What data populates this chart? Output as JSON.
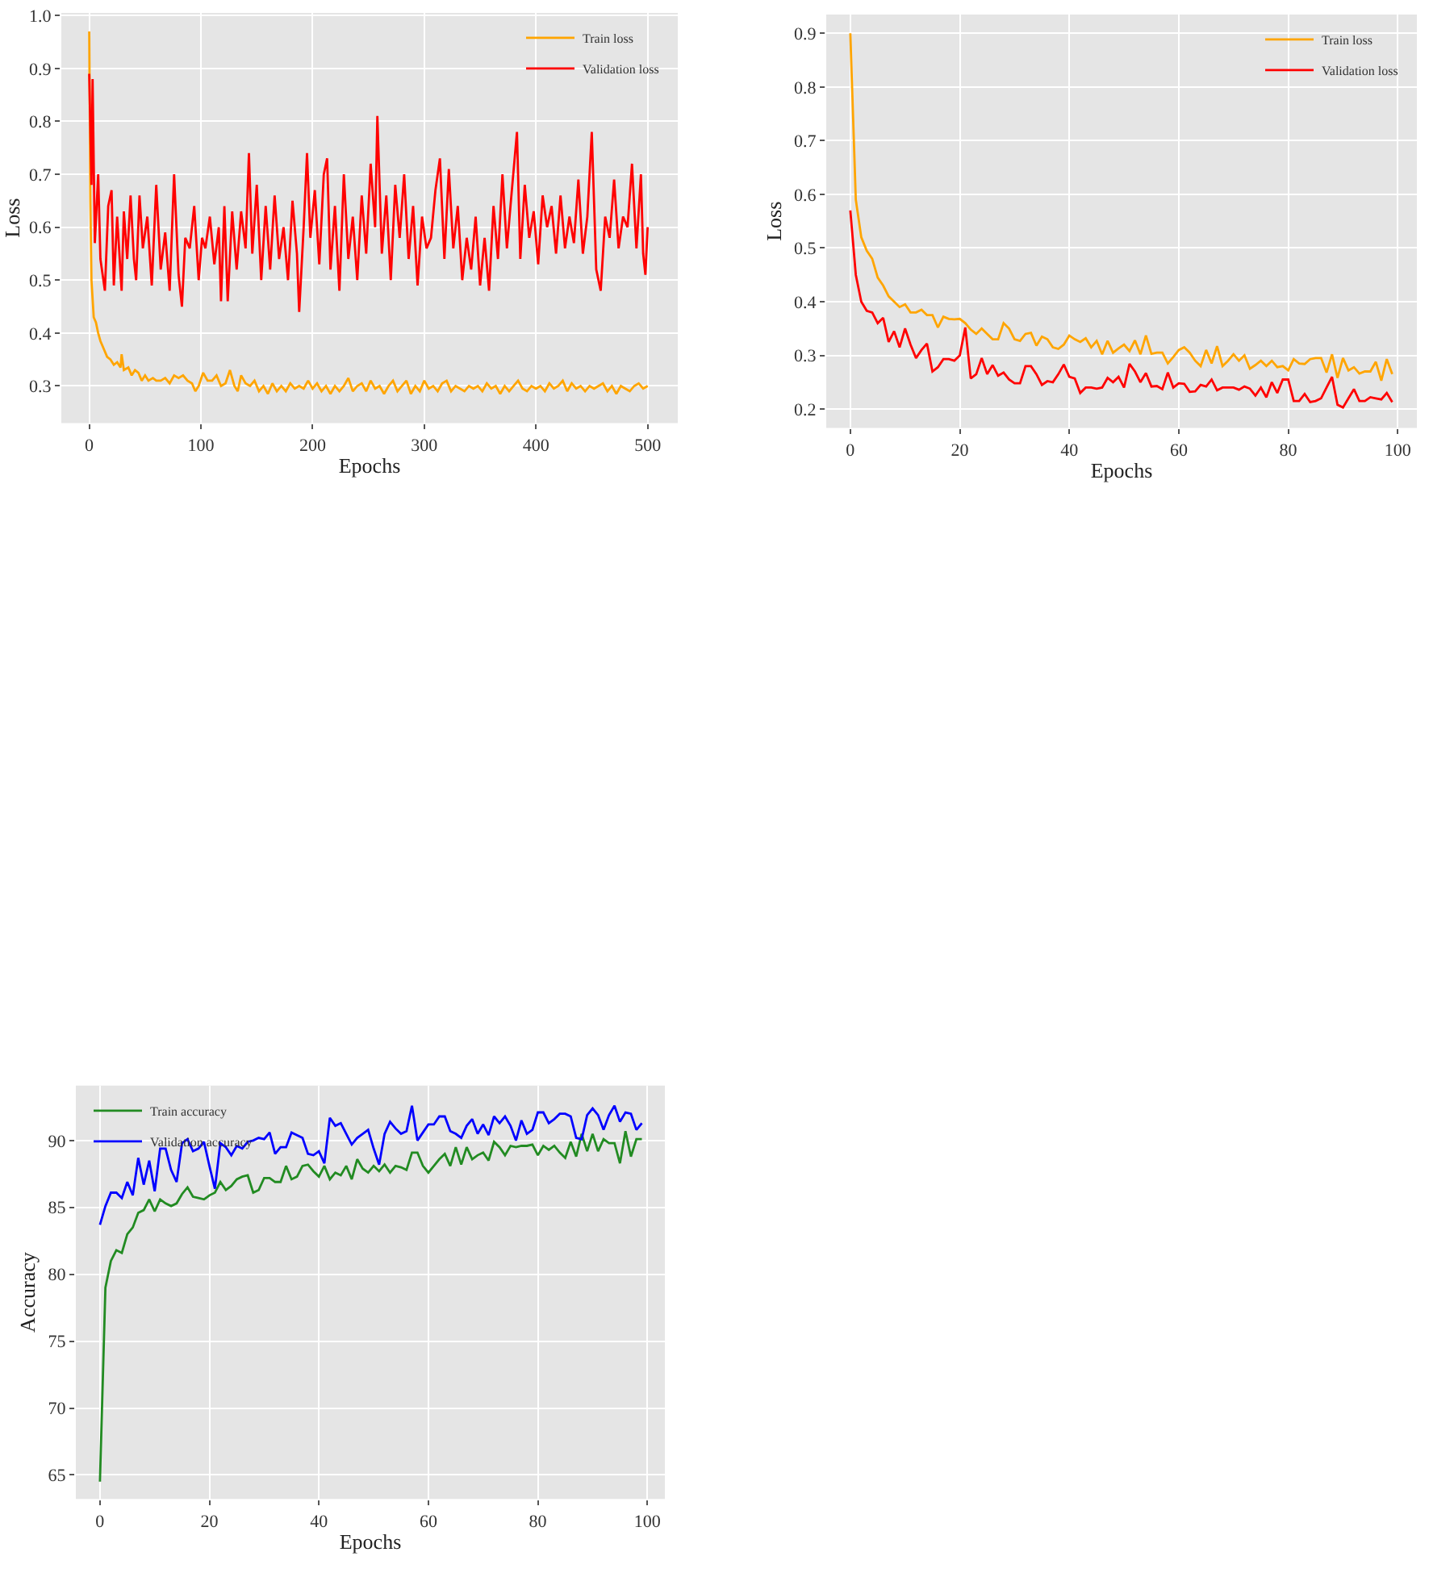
{
  "chart_data": [
    {
      "type": "line",
      "xlabel": "Epochs",
      "ylabel": "Loss",
      "xlim": [
        -25,
        527
      ],
      "ylim": [
        0.23,
        1.005
      ],
      "xticks": [
        0,
        100,
        200,
        300,
        400,
        500
      ],
      "yticks": [
        0.3,
        0.4,
        0.5,
        0.6,
        0.7,
        0.8,
        0.9,
        {
          "value": 1.0,
          "label": "1.0"
        }
      ],
      "grid": true,
      "legend": "top right",
      "marker": "none",
      "line_style": "solid",
      "series": [
        {
          "name": "Train loss",
          "color": "#ffa500",
          "x": [
            0,
            1,
            2,
            4,
            6,
            8,
            10,
            13,
            16,
            19,
            22,
            25,
            28,
            29,
            31,
            35,
            38,
            41,
            44,
            47,
            50,
            53,
            57,
            60,
            64,
            68,
            72,
            76,
            80,
            84,
            88,
            92,
            95,
            98,
            102,
            106,
            110,
            114,
            118,
            122,
            126,
            130,
            133,
            136,
            140,
            144,
            148,
            152,
            156,
            160,
            164,
            168,
            172,
            176,
            180,
            184,
            188,
            192,
            196,
            200,
            204,
            208,
            212,
            216,
            220,
            224,
            228,
            232,
            236,
            240,
            244,
            248,
            252,
            256,
            260,
            264,
            268,
            272,
            276,
            280,
            284,
            288,
            292,
            296,
            300,
            304,
            308,
            312,
            316,
            320,
            324,
            328,
            332,
            336,
            340,
            344,
            348,
            352,
            356,
            360,
            364,
            368,
            372,
            376,
            380,
            384,
            388,
            392,
            396,
            400,
            404,
            408,
            412,
            416,
            420,
            424,
            428,
            432,
            436,
            440,
            444,
            448,
            452,
            456,
            460,
            464,
            468,
            472,
            476,
            480,
            484,
            488,
            492,
            496,
            500
          ],
          "values": [
            0.97,
            0.65,
            0.5,
            0.43,
            0.42,
            0.4,
            0.385,
            0.37,
            0.355,
            0.35,
            0.34,
            0.345,
            0.335,
            0.36,
            0.33,
            0.335,
            0.32,
            0.33,
            0.325,
            0.31,
            0.32,
            0.31,
            0.315,
            0.31,
            0.31,
            0.315,
            0.305,
            0.32,
            0.315,
            0.32,
            0.31,
            0.305,
            0.29,
            0.3,
            0.325,
            0.31,
            0.31,
            0.32,
            0.3,
            0.305,
            0.33,
            0.3,
            0.29,
            0.32,
            0.305,
            0.3,
            0.31,
            0.29,
            0.3,
            0.285,
            0.305,
            0.29,
            0.3,
            0.29,
            0.305,
            0.295,
            0.3,
            0.295,
            0.31,
            0.295,
            0.305,
            0.29,
            0.3,
            0.285,
            0.3,
            0.29,
            0.3,
            0.315,
            0.29,
            0.3,
            0.305,
            0.29,
            0.31,
            0.295,
            0.3,
            0.285,
            0.3,
            0.31,
            0.29,
            0.3,
            0.31,
            0.285,
            0.3,
            0.29,
            0.31,
            0.295,
            0.3,
            0.29,
            0.305,
            0.31,
            0.29,
            0.3,
            0.295,
            0.29,
            0.3,
            0.295,
            0.3,
            0.29,
            0.305,
            0.295,
            0.3,
            0.285,
            0.3,
            0.29,
            0.3,
            0.31,
            0.295,
            0.29,
            0.3,
            0.295,
            0.3,
            0.29,
            0.305,
            0.295,
            0.3,
            0.31,
            0.29,
            0.305,
            0.295,
            0.3,
            0.29,
            0.3,
            0.295,
            0.3,
            0.305,
            0.29,
            0.3,
            0.285,
            0.3,
            0.295,
            0.29,
            0.3,
            0.305,
            0.295,
            0.3
          ]
        },
        {
          "name": "Validation loss",
          "color": "#ff0000",
          "x": [
            0,
            2,
            3,
            5,
            8,
            10,
            14,
            17,
            20,
            22,
            25,
            29,
            31,
            34,
            37,
            40,
            42,
            45,
            48,
            52,
            56,
            60,
            64,
            68,
            72,
            76,
            80,
            83,
            86,
            90,
            94,
            98,
            101,
            104,
            108,
            112,
            116,
            118,
            121,
            124,
            128,
            132,
            136,
            140,
            143,
            146,
            150,
            154,
            158,
            162,
            166,
            170,
            174,
            178,
            182,
            186,
            188,
            192,
            195,
            198,
            202,
            206,
            210,
            213,
            216,
            220,
            224,
            228,
            232,
            236,
            240,
            244,
            248,
            252,
            256,
            258,
            262,
            266,
            270,
            274,
            278,
            282,
            286,
            290,
            294,
            298,
            302,
            306,
            310,
            314,
            318,
            322,
            326,
            330,
            334,
            338,
            342,
            346,
            350,
            354,
            358,
            362,
            366,
            370,
            374,
            378,
            383,
            386,
            390,
            394,
            398,
            402,
            406,
            410,
            414,
            418,
            422,
            426,
            430,
            434,
            438,
            442,
            446,
            450,
            454,
            458,
            462,
            466,
            470,
            474,
            478,
            482,
            486,
            490,
            494,
            496,
            498,
            500
          ],
          "values": [
            0.89,
            0.68,
            0.88,
            0.57,
            0.7,
            0.54,
            0.48,
            0.64,
            0.67,
            0.49,
            0.62,
            0.48,
            0.63,
            0.54,
            0.66,
            0.54,
            0.5,
            0.66,
            0.56,
            0.62,
            0.49,
            0.68,
            0.52,
            0.59,
            0.48,
            0.7,
            0.51,
            0.45,
            0.58,
            0.56,
            0.64,
            0.5,
            0.58,
            0.56,
            0.62,
            0.53,
            0.6,
            0.46,
            0.64,
            0.46,
            0.63,
            0.52,
            0.63,
            0.56,
            0.74,
            0.55,
            0.68,
            0.5,
            0.64,
            0.52,
            0.66,
            0.54,
            0.6,
            0.5,
            0.65,
            0.55,
            0.44,
            0.6,
            0.74,
            0.58,
            0.67,
            0.53,
            0.7,
            0.73,
            0.52,
            0.64,
            0.48,
            0.7,
            0.54,
            0.62,
            0.5,
            0.66,
            0.55,
            0.72,
            0.6,
            0.81,
            0.55,
            0.66,
            0.5,
            0.68,
            0.58,
            0.7,
            0.54,
            0.64,
            0.49,
            0.62,
            0.56,
            0.58,
            0.67,
            0.73,
            0.54,
            0.71,
            0.56,
            0.64,
            0.5,
            0.58,
            0.52,
            0.62,
            0.49,
            0.58,
            0.48,
            0.64,
            0.54,
            0.7,
            0.56,
            0.66,
            0.78,
            0.54,
            0.68,
            0.58,
            0.63,
            0.53,
            0.66,
            0.6,
            0.64,
            0.55,
            0.66,
            0.56,
            0.62,
            0.57,
            0.69,
            0.55,
            0.62,
            0.78,
            0.52,
            0.48,
            0.62,
            0.58,
            0.69,
            0.56,
            0.62,
            0.6,
            0.72,
            0.56,
            0.7,
            0.55,
            0.51,
            0.6
          ]
        }
      ]
    },
    {
      "type": "line",
      "xlabel": "Epochs",
      "ylabel": "Loss",
      "xlim": [
        -4.4,
        103.5
      ],
      "ylim": [
        0.165,
        0.935
      ],
      "xticks": [
        0,
        20,
        40,
        60,
        80,
        100
      ],
      "yticks": [
        0.2,
        0.3,
        0.4,
        0.5,
        0.6,
        0.7,
        0.8,
        0.9
      ],
      "grid": true,
      "legend": "top right",
      "marker": "none",
      "line_style": "solid",
      "x": [
        0,
        1,
        2,
        3,
        4,
        5,
        6,
        7,
        8,
        9,
        10,
        11,
        12,
        13,
        14,
        15,
        16,
        17,
        18,
        19,
        20,
        21,
        22,
        23,
        24,
        25,
        26,
        27,
        28,
        29,
        30,
        31,
        32,
        33,
        34,
        35,
        36,
        37,
        38,
        39,
        40,
        41,
        42,
        43,
        44,
        45,
        46,
        47,
        48,
        49,
        50,
        51,
        52,
        53,
        54,
        55,
        56,
        57,
        58,
        59,
        60,
        61,
        62,
        63,
        64,
        65,
        66,
        67,
        68,
        69,
        70,
        71,
        72,
        73,
        74,
        75,
        76,
        77,
        78,
        79,
        80,
        81,
        82,
        83,
        84,
        85,
        86,
        87,
        88,
        89,
        90,
        91,
        92,
        93,
        94,
        95,
        96,
        97,
        98,
        99
      ],
      "series": [
        {
          "name": "Train loss",
          "color": "#ffa500",
          "values": [
            0.9,
            0.59,
            0.52,
            0.495,
            0.48,
            0.445,
            0.43,
            0.41,
            0.4,
            0.39,
            0.395,
            0.38,
            0.38,
            0.385,
            0.375,
            0.375,
            0.352,
            0.372,
            0.368,
            0.367,
            0.368,
            0.36,
            0.348,
            0.34,
            0.35,
            0.34,
            0.33,
            0.33,
            0.36,
            0.35,
            0.33,
            0.327,
            0.34,
            0.342,
            0.318,
            0.335,
            0.33,
            0.315,
            0.312,
            0.32,
            0.337,
            0.33,
            0.325,
            0.332,
            0.315,
            0.327,
            0.302,
            0.327,
            0.305,
            0.313,
            0.32,
            0.308,
            0.328,
            0.302,
            0.337,
            0.303,
            0.305,
            0.305,
            0.285,
            0.297,
            0.31,
            0.315,
            0.305,
            0.29,
            0.28,
            0.31,
            0.285,
            0.317,
            0.28,
            0.29,
            0.302,
            0.29,
            0.3,
            0.275,
            0.282,
            0.29,
            0.28,
            0.29,
            0.278,
            0.28,
            0.272,
            0.293,
            0.285,
            0.284,
            0.293,
            0.295,
            0.295,
            0.268,
            0.302,
            0.258,
            0.295,
            0.272,
            0.278,
            0.266,
            0.27,
            0.27,
            0.288,
            0.253,
            0.293,
            0.265
          ]
        },
        {
          "name": "Validation loss",
          "color": "#ff0000",
          "values": [
            0.57,
            0.45,
            0.4,
            0.383,
            0.38,
            0.36,
            0.37,
            0.325,
            0.345,
            0.315,
            0.35,
            0.32,
            0.295,
            0.31,
            0.322,
            0.27,
            0.278,
            0.293,
            0.293,
            0.29,
            0.3,
            0.352,
            0.257,
            0.265,
            0.295,
            0.265,
            0.282,
            0.262,
            0.268,
            0.255,
            0.248,
            0.248,
            0.28,
            0.28,
            0.265,
            0.245,
            0.252,
            0.25,
            0.265,
            0.283,
            0.26,
            0.257,
            0.23,
            0.24,
            0.24,
            0.238,
            0.24,
            0.258,
            0.25,
            0.26,
            0.24,
            0.284,
            0.27,
            0.25,
            0.267,
            0.242,
            0.243,
            0.237,
            0.268,
            0.24,
            0.248,
            0.247,
            0.232,
            0.233,
            0.245,
            0.242,
            0.255,
            0.235,
            0.24,
            0.24,
            0.24,
            0.236,
            0.242,
            0.238,
            0.225,
            0.24,
            0.222,
            0.25,
            0.23,
            0.255,
            0.255,
            0.215,
            0.215,
            0.228,
            0.213,
            0.215,
            0.22,
            0.24,
            0.26,
            0.208,
            0.203,
            0.22,
            0.237,
            0.215,
            0.215,
            0.222,
            0.22,
            0.218,
            0.23,
            0.213
          ]
        }
      ]
    },
    {
      "type": "line",
      "xlabel": "Epochs",
      "ylabel": "Accuracy",
      "xlim": [
        -4.4,
        103.2
      ],
      "ylim": [
        63.2,
        94.1
      ],
      "xticks": [
        0,
        20,
        40,
        60,
        80,
        100
      ],
      "yticks": [
        65,
        70,
        75,
        80,
        85,
        90
      ],
      "grid": true,
      "legend": "top left",
      "marker": "none",
      "line_style": "solid",
      "x": [
        0,
        1,
        2,
        3,
        4,
        5,
        6,
        7,
        8,
        9,
        10,
        11,
        12,
        13,
        14,
        15,
        16,
        17,
        18,
        19,
        20,
        21,
        22,
        23,
        24,
        25,
        26,
        27,
        28,
        29,
        30,
        31,
        32,
        33,
        34,
        35,
        36,
        37,
        38,
        39,
        40,
        41,
        42,
        43,
        44,
        45,
        46,
        47,
        48,
        49,
        50,
        51,
        52,
        53,
        54,
        55,
        56,
        57,
        58,
        59,
        60,
        61,
        62,
        63,
        64,
        65,
        66,
        67,
        68,
        69,
        70,
        71,
        72,
        73,
        74,
        75,
        76,
        77,
        78,
        79,
        80,
        81,
        82,
        83,
        84,
        85,
        86,
        87,
        88,
        89,
        90,
        91,
        92,
        93,
        94,
        95,
        96,
        97,
        98,
        99
      ],
      "series": [
        {
          "name": "Train accuracy",
          "color": "#228b22",
          "values": [
            64.5,
            79,
            81,
            81.8,
            81.6,
            83,
            83.5,
            84.6,
            84.8,
            85.6,
            84.7,
            85.6,
            85.3,
            85.1,
            85.3,
            86,
            86.5,
            85.8,
            85.7,
            85.6,
            85.9,
            86.1,
            86.9,
            86.3,
            86.6,
            87.1,
            87.3,
            87.4,
            86.1,
            86.3,
            87.2,
            87.2,
            86.9,
            86.9,
            88.1,
            87.1,
            87.3,
            88.1,
            88.2,
            87.7,
            87.3,
            88.1,
            87.1,
            87.6,
            87.4,
            88.1,
            87.1,
            88.6,
            87.9,
            87.6,
            88.1,
            87.7,
            88.2,
            87.6,
            88.1,
            88,
            87.8,
            89.1,
            89.1,
            88.1,
            87.6,
            88.1,
            88.6,
            89,
            88.1,
            89.5,
            88.2,
            89.5,
            88.6,
            88.9,
            89.1,
            88.5,
            89.9,
            89.5,
            88.9,
            89.6,
            89.5,
            89.6,
            89.6,
            89.7,
            88.9,
            89.6,
            89.3,
            89.6,
            89.1,
            88.7,
            89.9,
            88.8,
            90.5,
            89.2,
            90.5,
            89.2,
            90.1,
            89.8,
            89.8,
            88.3,
            90.7,
            88.8,
            90.1,
            90.1
          ]
        },
        {
          "name": "Validation accuracy",
          "color": "#0000ff",
          "values": [
            83.7,
            85.1,
            86.1,
            86.1,
            85.7,
            86.9,
            85.9,
            88.7,
            86.7,
            88.5,
            86.2,
            89.4,
            89.4,
            87.8,
            86.9,
            89.8,
            90.1,
            89.2,
            89.4,
            89.9,
            88.1,
            86.4,
            89.8,
            89.5,
            88.9,
            89.6,
            89.4,
            89.9,
            90,
            90.2,
            90.1,
            90.6,
            89,
            89.5,
            89.5,
            90.6,
            90.4,
            90.2,
            89,
            88.9,
            89.2,
            88.3,
            91.7,
            91.1,
            91.3,
            90.5,
            89.7,
            90.2,
            90.5,
            90.8,
            89.4,
            88.2,
            90.5,
            91.4,
            90.9,
            90.5,
            90.7,
            92.6,
            90,
            90.6,
            91.2,
            91.2,
            91.8,
            91.8,
            90.7,
            90.5,
            90.2,
            91.1,
            91.6,
            90.5,
            91.2,
            90.4,
            91.8,
            91.3,
            91.8,
            91.1,
            90,
            91.5,
            90.5,
            90.8,
            92.1,
            92.1,
            91.3,
            91.6,
            92,
            92,
            91.8,
            90.2,
            90.1,
            91.9,
            92.4,
            91.9,
            90.8,
            91.9,
            92.6,
            91.4,
            92.1,
            92,
            90.8,
            91.3
          ]
        }
      ]
    }
  ]
}
